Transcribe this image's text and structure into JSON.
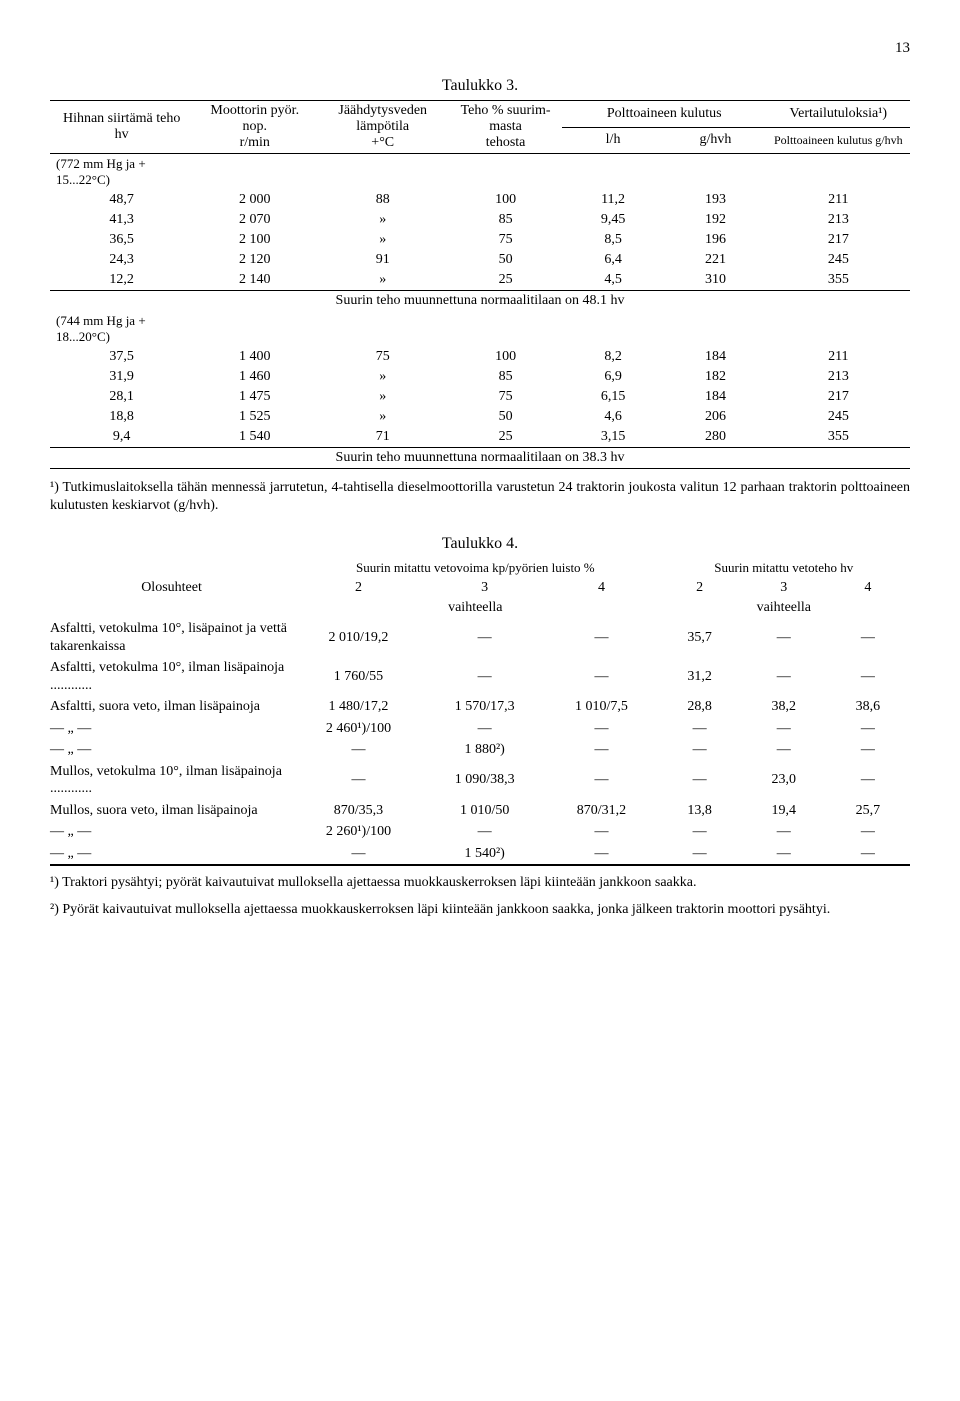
{
  "page_number": "13",
  "table3": {
    "title": "Taulukko 3.",
    "headers": {
      "col1": "Hihnan siirtämä teho hv",
      "col2a": "Moottorin pyör. nop.",
      "col2b": "r/min",
      "col3a": "Jäähdytys­veden lämpötila",
      "col3b": "+°C",
      "col4a": "Teho % suurim­masta",
      "col4b": "tehosta",
      "col5": "Polttoaineen kulutus",
      "col5a": "l/h",
      "col5b": "g/hvh",
      "col6": "Vertailu­tuloksia¹)",
      "col6b": "Polttoaineen kulutus g/hvh"
    },
    "section1": {
      "label": "(772 mm Hg ja + 15...22°C)",
      "rows": [
        [
          "48,7",
          "2 000",
          "88",
          "100",
          "11,2",
          "193",
          "211"
        ],
        [
          "41,3",
          "2 070",
          "»",
          "85",
          "9,45",
          "192",
          "213"
        ],
        [
          "36,5",
          "2 100",
          "»",
          "75",
          "8,5",
          "196",
          "217"
        ],
        [
          "24,3",
          "2 120",
          "91",
          "50",
          "6,4",
          "221",
          "245"
        ],
        [
          "12,2",
          "2 140",
          "»",
          "25",
          "4,5",
          "310",
          "355"
        ]
      ],
      "muun": "Suurin teho muunnettuna normaalitilaan on 48.1 hv"
    },
    "section2": {
      "label": "(744 mm Hg ja + 18...20°C)",
      "rows": [
        [
          "37,5",
          "1 400",
          "75",
          "100",
          "8,2",
          "184",
          "211"
        ],
        [
          "31,9",
          "1 460",
          "»",
          "85",
          "6,9",
          "182",
          "213"
        ],
        [
          "28,1",
          "1 475",
          "»",
          "75",
          "6,15",
          "184",
          "217"
        ],
        [
          "18,8",
          "1 525",
          "»",
          "50",
          "4,6",
          "206",
          "245"
        ],
        [
          "9,4",
          "1 540",
          "71",
          "25",
          "3,15",
          "280",
          "355"
        ]
      ],
      "muun": "Suurin teho muunnettuna normaalitilaan on 38.3 hv"
    },
    "footnote": "¹) Tutkimuslaitoksella tähän mennessä jarrutetun, 4-tahtisella diesel­moottorilla varustetun 24 traktorin joukosta valitun 12 parhaan traktorin polttoaineen kulutusten keskiarvot (g/hvh)."
  },
  "table4": {
    "title": "Taulukko 4.",
    "headers": {
      "olosuhteet": "Olosuhteet",
      "vetovoima": "Suurin mitattu vetovoima kp/pyörien luisto %",
      "vetoteho": "Suurin mitattu vetoteho hv",
      "c2": "2",
      "c3": "3",
      "c4": "4",
      "vaihteella": "vaihteella"
    },
    "rows": [
      {
        "label": "Asfaltti, vetokulma 10°, lisäpainot ja vettä takarenkaissa",
        "v": [
          "2 010/19,2",
          "—",
          "—",
          "35,7",
          "—",
          "—"
        ]
      },
      {
        "label": "Asfaltti, vetokulma 10°, ilman lisäpai­noja ............",
        "v": [
          "1 760/55",
          "—",
          "—",
          "31,2",
          "—",
          "—"
        ]
      },
      {
        "label": "Asfaltti, suora veto, ilman lisäpainoja",
        "v": [
          "1 480/17,2",
          "1 570/17,3",
          "1 010/7,5",
          "28,8",
          "38,2",
          "38,6"
        ]
      },
      {
        "label": "— „ —",
        "v": [
          "2 460¹)/100",
          "—",
          "—",
          "—",
          "—",
          "—"
        ]
      },
      {
        "label": "— „ —",
        "v": [
          "—",
          "1 880²)",
          "—",
          "—",
          "—",
          "—"
        ]
      },
      {
        "label": "Mullos, vetokulma 10°, ilman lisäpai­noja ............",
        "v": [
          "—",
          "1 090/38,3",
          "—",
          "—",
          "23,0",
          "—"
        ]
      },
      {
        "label": "Mullos, suora veto, ilman lisäpainoja",
        "v": [
          "870/35,3",
          "1 010/50",
          "870/31,2",
          "13,8",
          "19,4",
          "25,7"
        ]
      },
      {
        "label": "— „ —",
        "v": [
          "2 260¹)/100",
          "—",
          "—",
          "—",
          "—",
          "—"
        ]
      },
      {
        "label": "— „ —",
        "v": [
          "—",
          "1 540²)",
          "—",
          "—",
          "—",
          "—"
        ]
      }
    ],
    "footnote1": "¹) Traktori pysähtyi; pyörät kaivautuivat mulloksella ajettaessa muok­kauskerroksen läpi kiinteään jankkoon saakka.",
    "footnote2": "²) Pyörät kaivautuivat mulloksella ajettaessa muokkauskerroksen läpi kiinteään jankkoon saakka, jonka jälkeen traktorin moottori pysähtyi."
  }
}
